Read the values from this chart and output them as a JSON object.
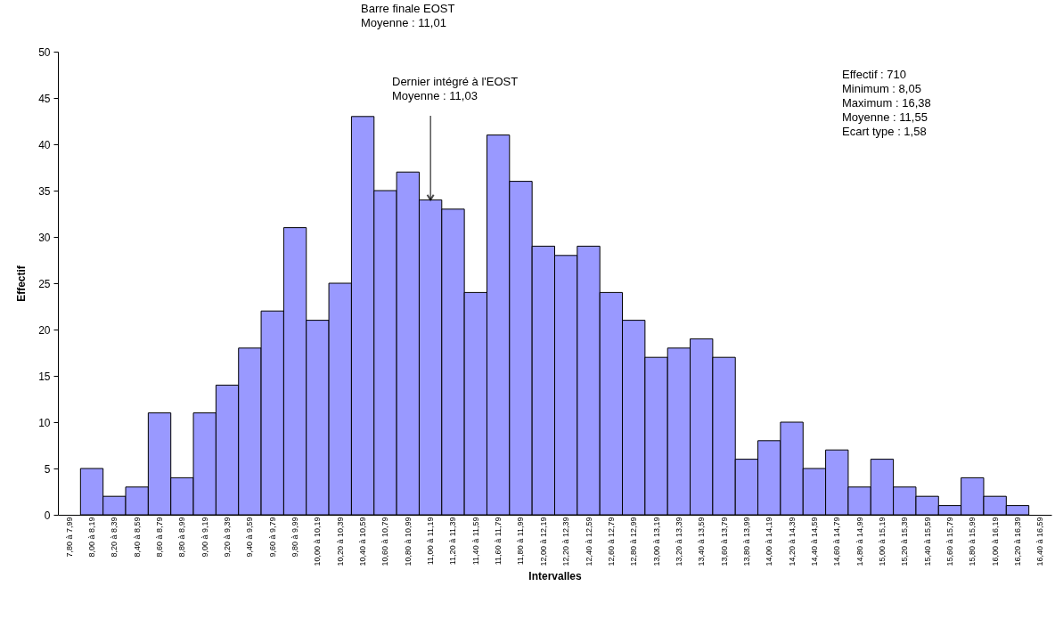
{
  "chart_data": {
    "type": "bar",
    "xlabel": "Intervalles",
    "ylabel": "Effectif",
    "color": "#9999ff",
    "categories": [
      "7,80 à 7,99",
      "8,00 à 8,19",
      "8,20 à 8,39",
      "8,40 à 8,59",
      "8,60 à 8,79",
      "8,80 à 8,99",
      "9,00 à 9,19",
      "9,20 à 9,39",
      "9,40 à 9,59",
      "9,60 à 9,79",
      "9,80 à 9,99",
      "10,00 à 10,19",
      "10,20 à 10,39",
      "10,40 à 10,59",
      "10,60 à 10,79",
      "10,80 à 10,99",
      "11,00 à 11,19",
      "11,20 à 11,39",
      "11,40 à 11,59",
      "11,60 à 11,79",
      "11,80 à 11,99",
      "12,00 à 12,19",
      "12,20 à 12,39",
      "12,40 à 12,59",
      "12,60 à 12,79",
      "12,80 à 12,99",
      "13,00 à 13,19",
      "13,20 à 13,39",
      "13,40 à 13,59",
      "13,60 à 13,79",
      "13,80 à 13,99",
      "14,00 à 14,19",
      "14,20 à 14,39",
      "14,40 à 14,59",
      "14,60 à 14,79",
      "14,80 à 14,99",
      "15,00 à 15,19",
      "15,20 à 15,39",
      "15,40 à 15,59",
      "15,60 à 15,79",
      "15,80 à 15,99",
      "16,00 à 16,19",
      "16,20 à 16,39",
      "16,40 à 16,59"
    ],
    "values": [
      0,
      5,
      2,
      3,
      11,
      4,
      11,
      14,
      18,
      22,
      31,
      21,
      25,
      43,
      35,
      37,
      34,
      33,
      24,
      41,
      36,
      29,
      28,
      29,
      24,
      21,
      17,
      18,
      19,
      17,
      6,
      8,
      10,
      5,
      7,
      3,
      6,
      3,
      2,
      1,
      4,
      2,
      1,
      0
    ],
    "ylim": [
      0,
      50
    ],
    "yticks": [
      0,
      5,
      10,
      15,
      20,
      25,
      30,
      35,
      40,
      45,
      50
    ],
    "grid": false,
    "annotations": [
      "Barre finale EOST\nMoyenne : 11,01",
      {
        "text": "Dernier intégré à l'EOST\nMoyenne : 11,03",
        "x": "11,00 à 11,19",
        "y": 34
      },
      "Effectif : 710\nMinimum : 8,05\nMaximum : 16,38\nMoyenne : 11,55\nEcart type : 1,58"
    ]
  }
}
